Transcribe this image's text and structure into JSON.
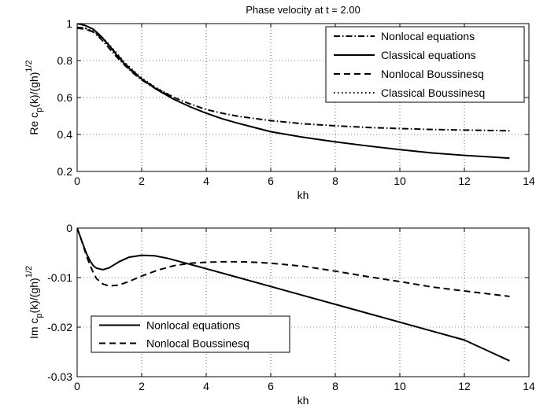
{
  "chart_data": [
    {
      "type": "line",
      "title": "Phase velocity at t = 2.00",
      "xlabel": "kh",
      "ylabel": "Re c_p(k)/(gh)^{1/2}",
      "ylabel_parts": {
        "a": "Re c",
        "b": "p",
        "c": "(k)/(gh)",
        "d": "1/2"
      },
      "xlim": [
        0,
        14
      ],
      "ylim": [
        0.2,
        1.0
      ],
      "xticks": [
        "0",
        "2",
        "4",
        "6",
        "8",
        "10",
        "12",
        "14"
      ],
      "yticks": [
        "0.2",
        "0.4",
        "0.6",
        "0.8",
        "1"
      ],
      "grid": true,
      "legend_position": "top-right",
      "series": [
        {
          "name": "Nonlocal equations",
          "style": "dashdot",
          "x": [
            0,
            0.25,
            0.5,
            0.75,
            1.0,
            1.25,
            1.5,
            1.75,
            2.0,
            2.5,
            3.0,
            3.5,
            4.0,
            4.5,
            5.0,
            6.0,
            7.0,
            8.0,
            9.0,
            10.0,
            11.0,
            12.0,
            13.4
          ],
          "y": [
            0.98,
            0.975,
            0.955,
            0.915,
            0.865,
            0.815,
            0.77,
            0.73,
            0.695,
            0.64,
            0.6,
            0.565,
            0.535,
            0.515,
            0.498,
            0.475,
            0.458,
            0.447,
            0.438,
            0.432,
            0.427,
            0.424,
            0.42
          ]
        },
        {
          "name": "Classical equations",
          "style": "solid",
          "x": [
            0,
            0.25,
            0.5,
            0.75,
            1.0,
            1.25,
            1.5,
            1.75,
            2.0,
            2.5,
            3.0,
            3.5,
            4.0,
            4.5,
            5.0,
            6.0,
            7.0,
            8.0,
            9.0,
            10.0,
            11.0,
            12.0,
            13.4
          ],
          "y": [
            1.0,
            0.99,
            0.97,
            0.93,
            0.88,
            0.825,
            0.775,
            0.735,
            0.7,
            0.64,
            0.59,
            0.55,
            0.515,
            0.485,
            0.46,
            0.415,
            0.385,
            0.36,
            0.338,
            0.318,
            0.3,
            0.287,
            0.272
          ]
        },
        {
          "name": "Nonlocal Boussinesq",
          "style": "dashed",
          "x": [
            0,
            0.25,
            0.5,
            0.75,
            1.0,
            1.25,
            1.5,
            1.75,
            2.0,
            2.5,
            3.0
          ],
          "y": [
            0.975,
            0.97,
            0.955,
            0.925,
            0.88,
            0.83,
            0.78,
            0.74,
            0.7,
            0.645,
            0.6
          ]
        },
        {
          "name": "Classical Boussinesq",
          "style": "dotted",
          "x": [
            0,
            0.25,
            0.5,
            0.75,
            1.0,
            1.25,
            1.5,
            1.75,
            2.0,
            2.5,
            3.0
          ],
          "y": [
            0.98,
            0.975,
            0.96,
            0.93,
            0.885,
            0.835,
            0.785,
            0.745,
            0.705,
            0.648,
            0.602
          ]
        }
      ]
    },
    {
      "type": "line",
      "title": "",
      "xlabel": "kh",
      "ylabel": "Im c_p(k)/(gh)^{1/2}",
      "ylabel_parts": {
        "a": "Im c",
        "b": "p",
        "c": "(k)/(gh)",
        "d": "1/2"
      },
      "xlim": [
        0,
        14
      ],
      "ylim": [
        -0.03,
        0
      ],
      "xticks": [
        "0",
        "2",
        "4",
        "6",
        "8",
        "10",
        "12",
        "14"
      ],
      "yticks": [
        "-0.03",
        "-0.02",
        "-0.01",
        "0"
      ],
      "grid": true,
      "legend_position": "bottom-left",
      "series": [
        {
          "name": "Nonlocal equations",
          "style": "solid",
          "x": [
            0,
            0.1,
            0.2,
            0.3,
            0.4,
            0.5,
            0.6,
            0.8,
            1.0,
            1.3,
            1.6,
            2.0,
            2.4,
            2.8,
            3.2,
            3.6,
            4.0,
            5.0,
            6.0,
            7.0,
            8.0,
            9.0,
            10.0,
            11.0,
            12.0,
            13.4
          ],
          "y": [
            0,
            -0.0018,
            -0.0036,
            -0.0053,
            -0.0066,
            -0.0076,
            -0.0081,
            -0.0084,
            -0.008,
            -0.0068,
            -0.0059,
            -0.0055,
            -0.0056,
            -0.0061,
            -0.0068,
            -0.0075,
            -0.0082,
            -0.01,
            -0.0118,
            -0.0136,
            -0.0154,
            -0.0172,
            -0.019,
            -0.0208,
            -0.0226,
            -0.0268
          ]
        },
        {
          "name": "Nonlocal Boussinesq",
          "style": "dashed",
          "x": [
            0,
            0.1,
            0.2,
            0.3,
            0.4,
            0.5,
            0.6,
            0.8,
            1.0,
            1.3,
            1.6,
            2.0,
            2.5,
            3.0,
            3.5,
            4.0,
            4.5,
            5.0,
            5.5,
            6.0,
            7.0,
            8.0,
            9.0,
            10.0,
            11.0,
            12.0,
            13.4
          ],
          "y": [
            0,
            -0.0018,
            -0.0038,
            -0.0058,
            -0.0075,
            -0.009,
            -0.0102,
            -0.0113,
            -0.0117,
            -0.0115,
            -0.0108,
            -0.0097,
            -0.0085,
            -0.0076,
            -0.0071,
            -0.0069,
            -0.0068,
            -0.0068,
            -0.0069,
            -0.0071,
            -0.0077,
            -0.0087,
            -0.0098,
            -0.0108,
            -0.0119,
            -0.0127,
            -0.0138
          ]
        }
      ]
    }
  ]
}
